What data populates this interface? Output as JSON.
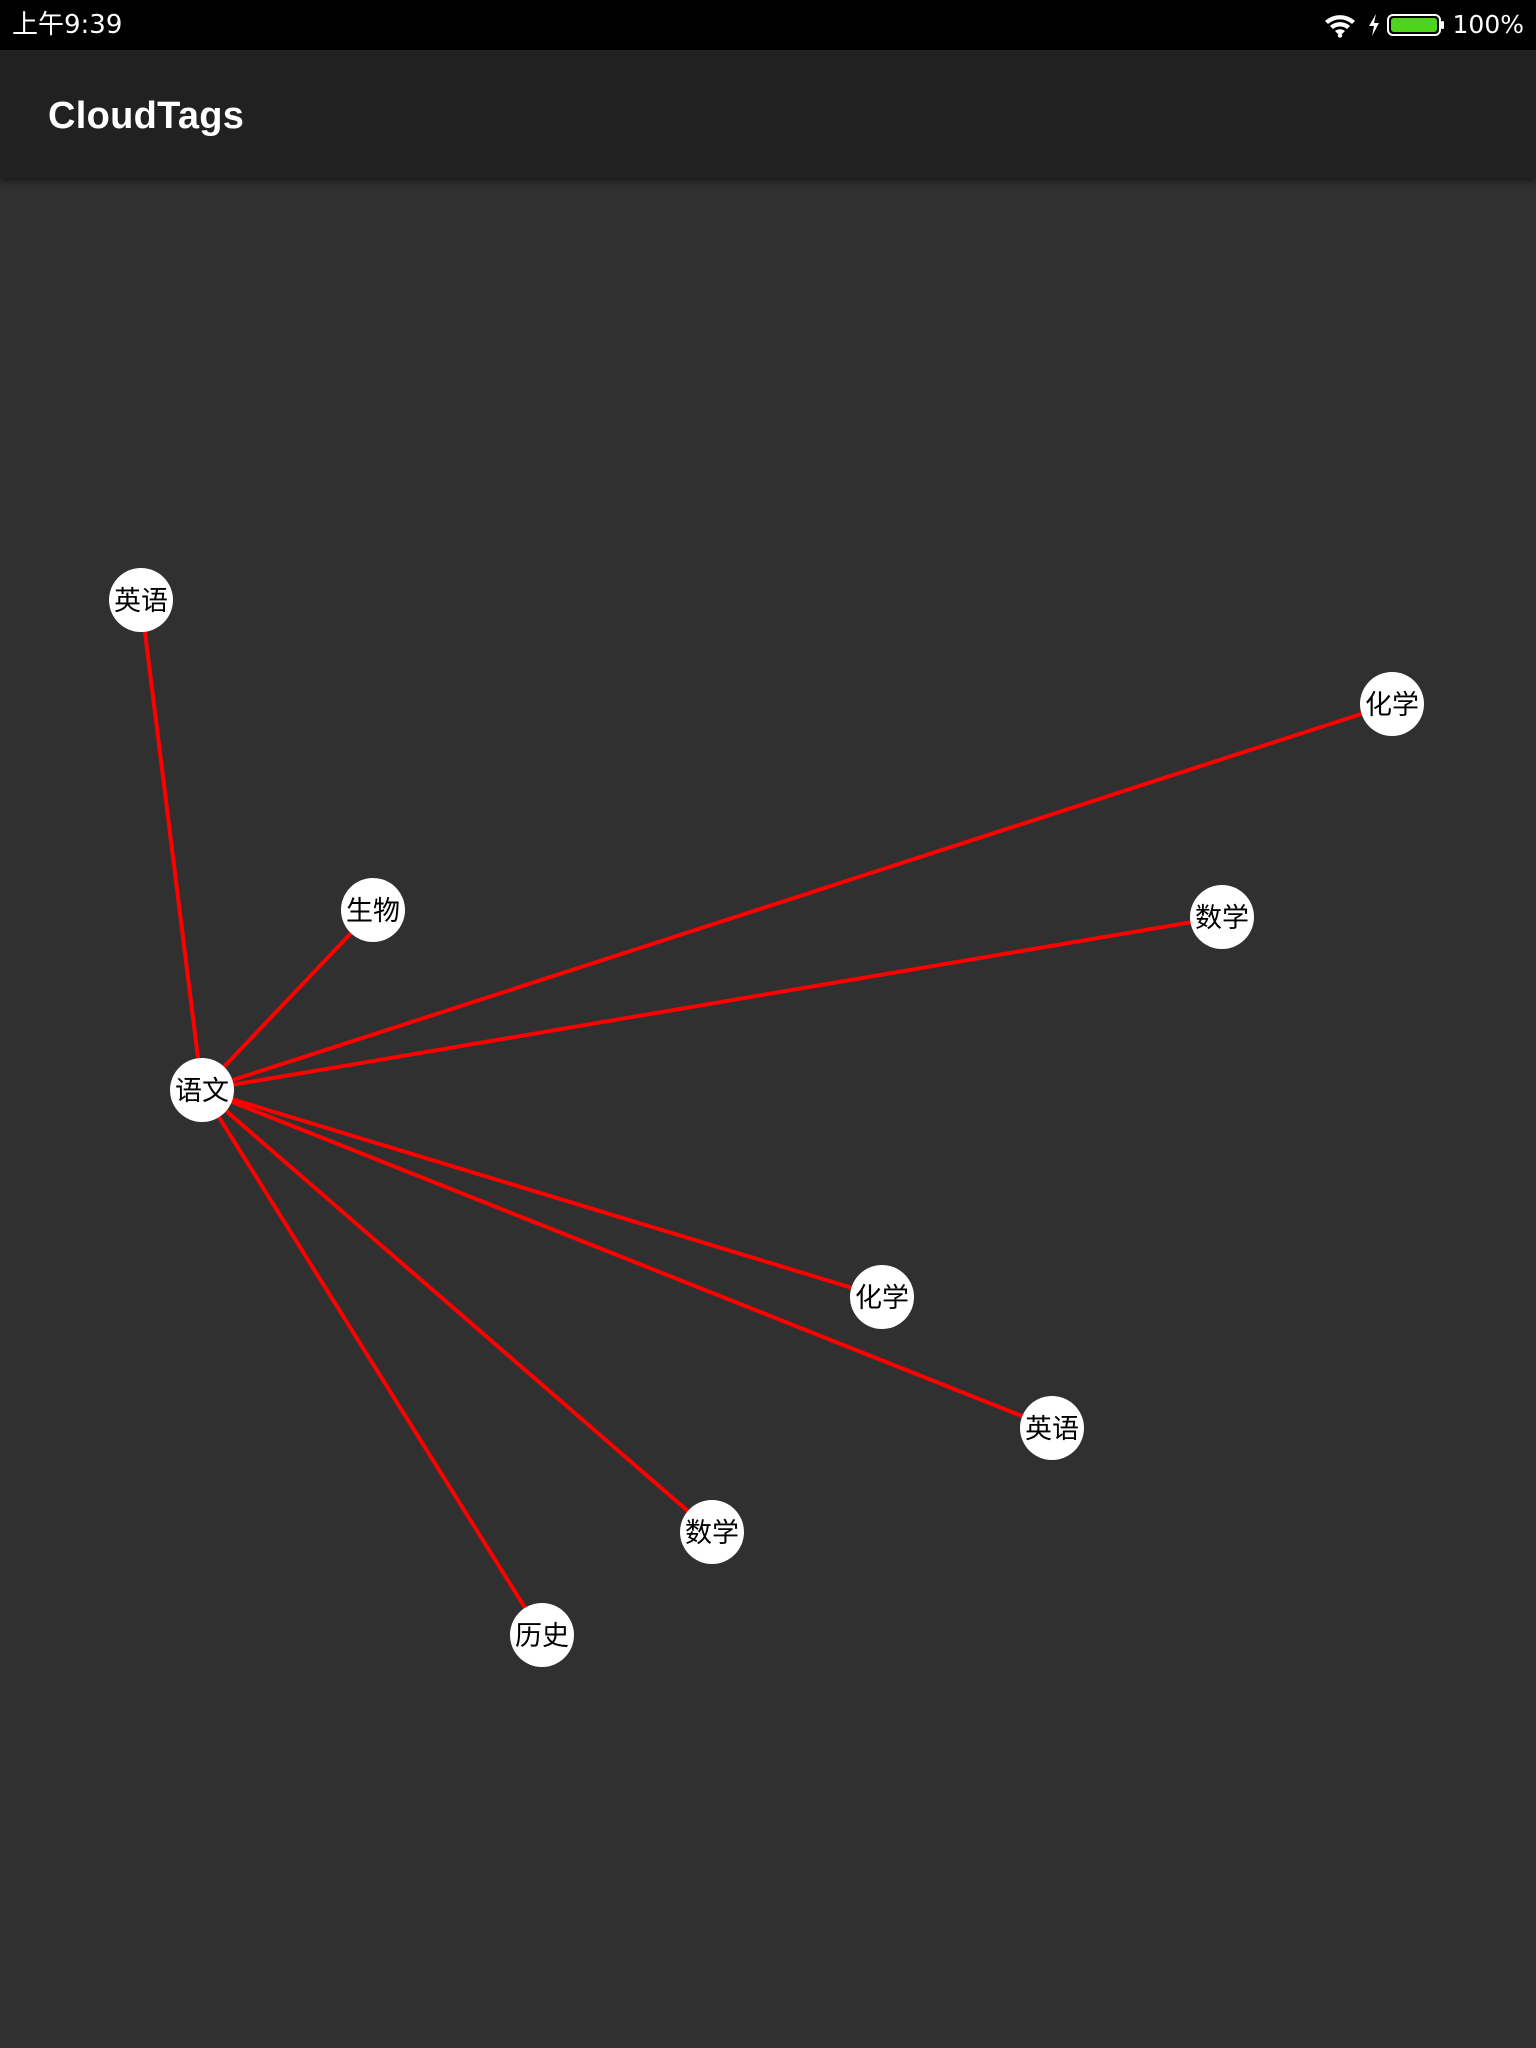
{
  "status_bar": {
    "time": "上午9:39",
    "battery": "100%",
    "icons": [
      "wifi-icon",
      "charging-icon",
      "battery-icon"
    ],
    "battery_color": "#4cd51b"
  },
  "app_bar": {
    "title": "CloudTags"
  },
  "colors": {
    "background": "#303030",
    "app_bar": "#212121",
    "edge": "#ff0000",
    "node_fill": "#ffffff",
    "node_text": "#000000"
  },
  "graph": {
    "center": {
      "label": "语文"
    },
    "tags": [
      {
        "label": "英语"
      },
      {
        "label": "化学"
      },
      {
        "label": "生物"
      },
      {
        "label": "数学"
      },
      {
        "label": "化学"
      },
      {
        "label": "英语"
      },
      {
        "label": "数学"
      },
      {
        "label": "历史"
      }
    ]
  }
}
